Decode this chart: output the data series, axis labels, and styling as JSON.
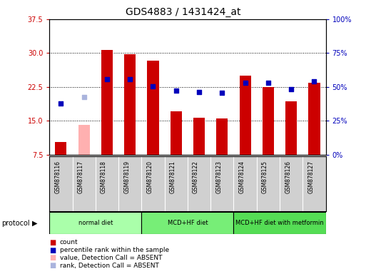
{
  "title": "GDS4883 / 1431424_at",
  "samples": [
    "GSM878116",
    "GSM878117",
    "GSM878118",
    "GSM878119",
    "GSM878120",
    "GSM878121",
    "GSM878122",
    "GSM878123",
    "GSM878124",
    "GSM878125",
    "GSM878126",
    "GSM878127"
  ],
  "count_values": [
    10.4,
    null,
    30.7,
    29.7,
    28.4,
    17.2,
    15.7,
    15.6,
    null,
    null,
    19.3,
    23.4
  ],
  "count_absent": [
    null,
    14.1,
    null,
    null,
    null,
    null,
    null,
    null,
    null,
    null,
    null,
    null
  ],
  "percentile_values": [
    18.8,
    null,
    24.3,
    24.3,
    22.6,
    21.7,
    21.4,
    21.3,
    23.5,
    23.4,
    22.0,
    23.7
  ],
  "percentile_absent": [
    null,
    20.3,
    null,
    null,
    null,
    null,
    null,
    null,
    null,
    null,
    null,
    null
  ],
  "count_present": [
    10.4,
    null,
    30.7,
    29.7,
    28.4,
    17.2,
    15.7,
    15.6,
    25.0,
    22.5,
    19.3,
    23.4
  ],
  "left_ylim": [
    7.5,
    37.5
  ],
  "left_yticks": [
    7.5,
    15.0,
    22.5,
    30.0,
    37.5
  ],
  "right_ylim": [
    0,
    100
  ],
  "right_yticks": [
    0,
    25,
    50,
    75,
    100
  ],
  "right_yticklabels": [
    "0%",
    "25%",
    "50%",
    "75%",
    "100%"
  ],
  "bar_color": "#cc0000",
  "bar_absent_color": "#ffb0b0",
  "dot_color": "#0000bb",
  "dot_absent_color": "#aab4dd",
  "bar_width": 0.5,
  "dot_size": 22,
  "left_label_color": "#cc0000",
  "right_label_color": "#0000bb",
  "group_data": [
    {
      "start": 0,
      "end": 3,
      "label": "normal diet",
      "color": "#aaffaa"
    },
    {
      "start": 4,
      "end": 7,
      "label": "MCD+HF diet",
      "color": "#77ee77"
    },
    {
      "start": 8,
      "end": 11,
      "label": "MCD+HF diet with metformin",
      "color": "#55dd55"
    }
  ]
}
